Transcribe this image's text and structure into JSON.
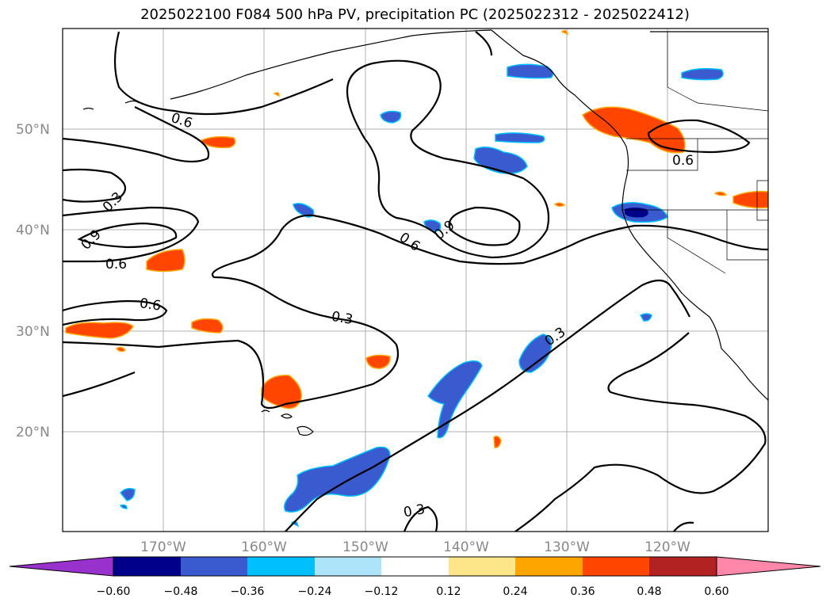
{
  "title": "2025022100 F084 500 hPa PV, precipitation PC (2025022312 - 2025022412)",
  "latitudes": [
    "50°N",
    "40°N",
    "30°N",
    "20°N"
  ],
  "longitudes": [
    "170°W",
    "160°W",
    "150°W",
    "140°W",
    "130°W",
    "120°W"
  ],
  "contour_labels": [
    "0.6",
    "0.3",
    "0.9",
    "0.6",
    "0.6",
    "0.3",
    "0.6",
    "0.9",
    "0.6",
    "0.3",
    "0.3"
  ],
  "colorbar": {
    "ticks": [
      "−0.60",
      "−0.48",
      "−0.36",
      "−0.24",
      "−0.12",
      "0.12",
      "0.24",
      "0.36",
      "0.48",
      "0.60"
    ],
    "colors": [
      "#9932cc",
      "#00008b",
      "#3a5bd0",
      "#00bfff",
      "#aee4f9",
      "#ffffff",
      "#fde68a",
      "#ffa500",
      "#ff4500",
      "#b22222",
      "#ff88aa"
    ]
  },
  "colors": {
    "contour": "#000000",
    "grid": "#b0b0b0",
    "coast": "#000000",
    "positive_fill": "#ff4500",
    "negative_fill": "#3a5bd0",
    "strong_negative_fill": "#00008b"
  }
}
